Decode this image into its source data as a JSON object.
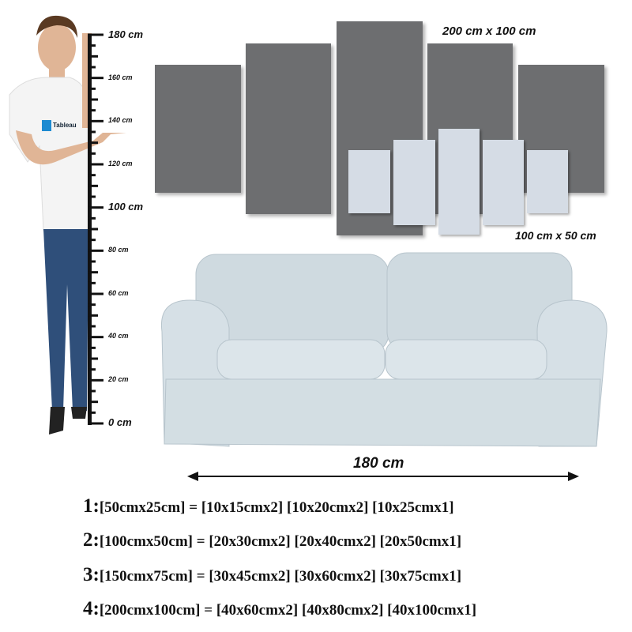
{
  "panel_labels": {
    "large_set": "200 cm x 100 cm",
    "small_set": "100 cm x 50 cm"
  },
  "ruler": {
    "ticks": [
      "180 cm",
      "160 cm",
      "140 cm",
      "120 cm",
      "100 cm",
      "80 cm",
      "60 cm",
      "40 cm",
      "20 cm",
      "0 cm"
    ]
  },
  "sofa_width_label": "180 cm",
  "logo_text": "Tableau",
  "specs": [
    {
      "num": "1:",
      "text": "[50cmx25cm] = [10x15cmx2] [10x20cmx2] [10x25cmx1]"
    },
    {
      "num": "2:",
      "text": "[100cmx50cm] = [20x30cmx2] [20x40cmx2] [20x50cmx1]"
    },
    {
      "num": "3:",
      "text": "[150cmx75cm] = [30x45cmx2] [30x60cmx2] [30x75cmx1]"
    },
    {
      "num": "4:",
      "text": "[200cmx100cm] = [40x60cmx2] [40x80cmx2] [40x100cmx1]"
    }
  ],
  "colors": {
    "large_panel": "#6d6e70",
    "small_panel": "#d5dce5",
    "sofa": "#d3dee3"
  }
}
